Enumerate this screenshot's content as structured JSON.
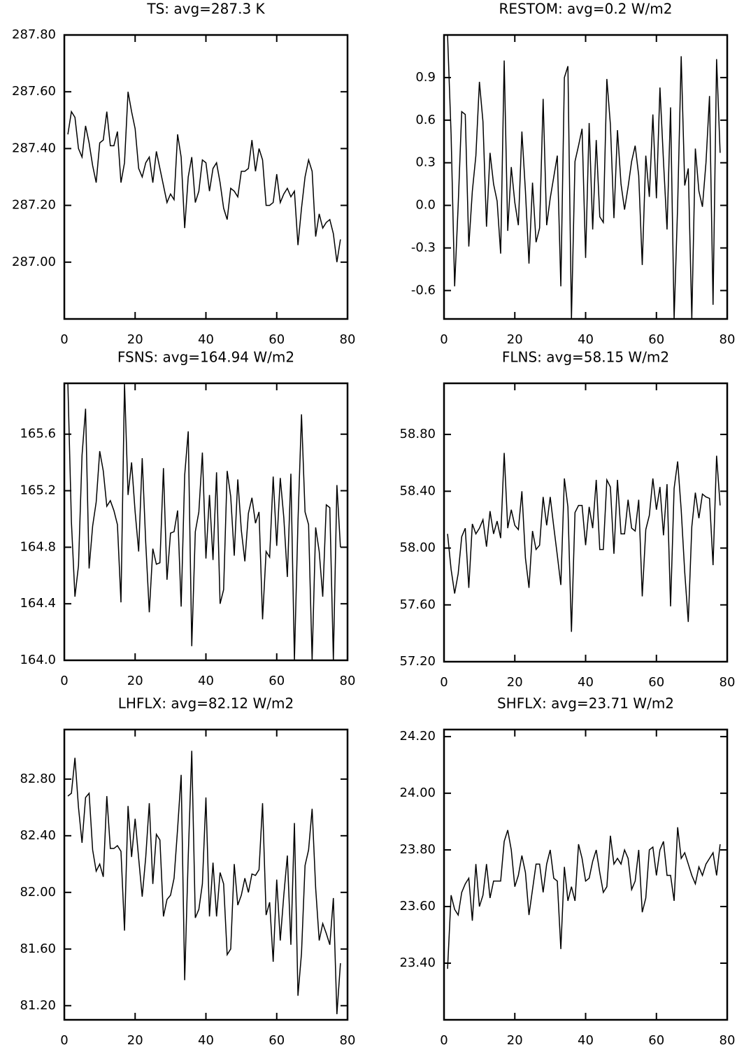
{
  "chart_data": [
    {
      "type": "line",
      "title": "TS: avg=287.3 K",
      "color": "#000000",
      "x": [
        1,
        2,
        3,
        4,
        5,
        6,
        7,
        8,
        9,
        10,
        11,
        12,
        13,
        14,
        15,
        16,
        17,
        18,
        19,
        20,
        21,
        22,
        23,
        24,
        25,
        26,
        27,
        28,
        29,
        30,
        31,
        32,
        33,
        34,
        35,
        36,
        37,
        38,
        39,
        40,
        41,
        42,
        43,
        44,
        45,
        46,
        47,
        48,
        49,
        50,
        51,
        52,
        53,
        54,
        55,
        56,
        57,
        58,
        59,
        60,
        61,
        62,
        63,
        64,
        65,
        66,
        67,
        68,
        69,
        70,
        71,
        72,
        73,
        74,
        75,
        76,
        77,
        78
      ],
      "values": [
        287.45,
        287.53,
        287.51,
        287.4,
        287.37,
        287.48,
        287.42,
        287.34,
        287.28,
        287.42,
        287.43,
        287.53,
        287.41,
        287.41,
        287.46,
        287.28,
        287.35,
        287.6,
        287.53,
        287.47,
        287.33,
        287.3,
        287.35,
        287.37,
        287.28,
        287.39,
        287.33,
        287.27,
        287.21,
        287.24,
        287.22,
        287.45,
        287.37,
        287.12,
        287.3,
        287.37,
        287.21,
        287.25,
        287.36,
        287.35,
        287.25,
        287.33,
        287.35,
        287.28,
        287.19,
        287.15,
        287.26,
        287.25,
        287.23,
        287.32,
        287.32,
        287.33,
        287.43,
        287.32,
        287.4,
        287.36,
        287.2,
        287.2,
        287.21,
        287.31,
        287.21,
        287.24,
        287.26,
        287.23,
        287.25,
        287.06,
        287.19,
        287.3,
        287.36,
        287.32,
        287.09,
        287.17,
        287.12,
        287.14,
        287.15,
        287.1,
        287.0,
        287.08
      ],
      "xlim": [
        0,
        80
      ],
      "xticks": [
        0,
        20,
        40,
        60,
        80
      ],
      "ylim": [
        286.8,
        287.8
      ],
      "yticks": [
        {
          "value": 287.0,
          "label": "287.00"
        },
        {
          "value": 287.2,
          "label": "287.20"
        },
        {
          "value": 287.4,
          "label": "287.40"
        },
        {
          "value": 287.6,
          "label": "287.60"
        },
        {
          "value": 287.8,
          "label": "287.80"
        }
      ]
    },
    {
      "type": "line",
      "title": "RESTOM: avg=0.2 W/m2",
      "color": "#000000",
      "x": [
        1,
        2,
        3,
        4,
        5,
        6,
        7,
        8,
        9,
        10,
        11,
        12,
        13,
        14,
        15,
        16,
        17,
        18,
        19,
        20,
        21,
        22,
        23,
        24,
        25,
        26,
        27,
        28,
        29,
        30,
        31,
        32,
        33,
        34,
        35,
        36,
        37,
        38,
        39,
        40,
        41,
        42,
        43,
        44,
        45,
        46,
        47,
        48,
        49,
        50,
        51,
        52,
        53,
        54,
        55,
        56,
        57,
        58,
        59,
        60,
        61,
        62,
        63,
        64,
        65,
        66,
        67,
        68,
        69,
        70,
        71,
        72,
        73,
        74,
        75,
        76,
        77,
        78
      ],
      "values": [
        1.2,
        0.5,
        -0.57,
        0.0,
        0.66,
        0.64,
        -0.29,
        0.1,
        0.35,
        0.87,
        0.59,
        -0.15,
        0.37,
        0.15,
        0.03,
        -0.34,
        1.02,
        -0.18,
        0.27,
        0.02,
        -0.14,
        0.52,
        0.1,
        -0.41,
        0.16,
        -0.26,
        -0.16,
        0.75,
        -0.14,
        0.05,
        0.2,
        0.35,
        -0.57,
        0.9,
        0.98,
        -0.8,
        0.31,
        0.42,
        0.54,
        -0.37,
        0.58,
        -0.17,
        0.46,
        -0.08,
        -0.12,
        0.89,
        0.57,
        -0.09,
        0.53,
        0.15,
        -0.03,
        0.13,
        0.31,
        0.42,
        0.21,
        -0.42,
        0.35,
        0.06,
        0.64,
        0.05,
        0.83,
        0.31,
        -0.17,
        0.69,
        -0.8,
        0.0,
        1.05,
        0.14,
        0.26,
        -0.8,
        0.4,
        0.1,
        -0.01,
        0.3,
        0.77,
        -0.7,
        1.03,
        0.37
      ],
      "xlim": [
        0,
        80
      ],
      "xticks": [
        0,
        20,
        40,
        60,
        80
      ],
      "ylim": [
        -0.8,
        1.2
      ],
      "yticks": [
        -0.6,
        -0.3,
        {
          "value": 0,
          "label": "0.0"
        },
        0.3,
        0.6,
        0.9
      ]
    },
    {
      "type": "line",
      "title": "FSNS: avg=164.94 W/m2",
      "color": "#000000",
      "x": [
        1,
        2,
        3,
        4,
        5,
        6,
        7,
        8,
        9,
        10,
        11,
        12,
        13,
        14,
        15,
        16,
        17,
        18,
        19,
        20,
        21,
        22,
        23,
        24,
        25,
        26,
        27,
        28,
        29,
        30,
        31,
        32,
        33,
        34,
        35,
        36,
        37,
        38,
        39,
        40,
        41,
        42,
        43,
        44,
        45,
        46,
        47,
        48,
        49,
        50,
        51,
        52,
        53,
        54,
        55,
        56,
        57,
        58,
        59,
        60,
        61,
        62,
        63,
        64,
        65,
        66,
        67,
        68,
        69,
        70,
        71,
        72,
        73,
        74,
        75,
        76,
        77,
        78
      ],
      "values": [
        165.96,
        164.98,
        164.45,
        164.67,
        165.45,
        165.78,
        164.65,
        164.95,
        165.12,
        165.48,
        165.34,
        165.09,
        165.13,
        165.06,
        164.96,
        164.41,
        165.96,
        165.17,
        165.4,
        165.05,
        164.77,
        165.43,
        164.83,
        164.34,
        164.79,
        164.68,
        164.69,
        165.36,
        164.57,
        164.9,
        164.91,
        165.06,
        164.38,
        165.31,
        165.62,
        164.1,
        164.91,
        165.05,
        165.47,
        164.72,
        165.17,
        164.71,
        165.33,
        164.4,
        164.5,
        165.34,
        165.16,
        164.74,
        165.28,
        164.92,
        164.7,
        165.04,
        165.15,
        164.97,
        165.05,
        164.29,
        164.77,
        164.73,
        165.3,
        164.81,
        165.29,
        165.01,
        164.59,
        165.32,
        164.0,
        164.98,
        165.74,
        165.05,
        164.96,
        164.0,
        164.94,
        164.77,
        164.45,
        165.1,
        165.08,
        164.0,
        165.24,
        164.8
      ],
      "xlim": [
        0,
        80
      ],
      "xticks": [
        0,
        20,
        40,
        60,
        80
      ],
      "ylim": [
        164.0,
        165.96
      ],
      "yticks": [
        {
          "value": 164.0,
          "label": "164.0"
        },
        164.4,
        164.8,
        165.2,
        165.6
      ]
    },
    {
      "type": "line",
      "title": "FLNS: avg=58.15 W/m2",
      "color": "#000000",
      "x": [
        1,
        2,
        3,
        4,
        5,
        6,
        7,
        8,
        9,
        10,
        11,
        12,
        13,
        14,
        15,
        16,
        17,
        18,
        19,
        20,
        21,
        22,
        23,
        24,
        25,
        26,
        27,
        28,
        29,
        30,
        31,
        32,
        33,
        34,
        35,
        36,
        37,
        38,
        39,
        40,
        41,
        42,
        43,
        44,
        45,
        46,
        47,
        48,
        49,
        50,
        51,
        52,
        53,
        54,
        55,
        56,
        57,
        58,
        59,
        60,
        61,
        62,
        63,
        64,
        65,
        66,
        67,
        68,
        69,
        70,
        71,
        72,
        73,
        74,
        75,
        76,
        77,
        78
      ],
      "values": [
        58.1,
        57.85,
        57.68,
        57.82,
        58.08,
        58.14,
        57.72,
        58.17,
        58.1,
        58.14,
        58.2,
        58.01,
        58.26,
        58.1,
        58.19,
        58.07,
        58.67,
        58.14,
        58.27,
        58.16,
        58.13,
        58.4,
        57.93,
        57.72,
        58.12,
        57.99,
        58.02,
        58.36,
        58.16,
        58.36,
        58.15,
        57.95,
        57.74,
        58.49,
        58.29,
        57.41,
        58.25,
        58.3,
        58.3,
        58.02,
        58.29,
        58.14,
        58.48,
        57.99,
        57.99,
        58.48,
        58.43,
        57.96,
        58.48,
        58.1,
        58.1,
        58.34,
        58.14,
        58.12,
        58.34,
        57.66,
        58.13,
        58.23,
        58.49,
        58.27,
        58.43,
        58.09,
        58.45,
        57.59,
        58.42,
        58.61,
        58.27,
        57.83,
        57.48,
        58.15,
        58.39,
        58.21,
        58.38,
        58.36,
        58.35,
        57.88,
        58.65,
        58.3
      ],
      "xlim": [
        0,
        80
      ],
      "xticks": [
        0,
        20,
        40,
        60,
        80
      ],
      "ylim": [
        57.2,
        59.16
      ],
      "yticks": [
        {
          "value": 57.2,
          "label": "57.20"
        },
        {
          "value": 57.6,
          "label": "57.60"
        },
        {
          "value": 58.0,
          "label": "58.00"
        },
        {
          "value": 58.4,
          "label": "58.40"
        },
        {
          "value": 58.8,
          "label": "58.80"
        }
      ]
    },
    {
      "type": "line",
      "title": "LHFLX: avg=82.12 W/m2",
      "color": "#000000",
      "x": [
        1,
        2,
        3,
        4,
        5,
        6,
        7,
        8,
        9,
        10,
        11,
        12,
        13,
        14,
        15,
        16,
        17,
        18,
        19,
        20,
        21,
        22,
        23,
        24,
        25,
        26,
        27,
        28,
        29,
        30,
        31,
        32,
        33,
        34,
        35,
        36,
        37,
        38,
        39,
        40,
        41,
        42,
        43,
        44,
        45,
        46,
        47,
        48,
        49,
        50,
        51,
        52,
        53,
        54,
        55,
        56,
        57,
        58,
        59,
        60,
        61,
        62,
        63,
        64,
        65,
        66,
        67,
        68,
        69,
        70,
        71,
        72,
        73,
        74,
        75,
        76,
        77,
        78
      ],
      "values": [
        82.68,
        82.7,
        82.95,
        82.6,
        82.35,
        82.67,
        82.7,
        82.3,
        82.15,
        82.2,
        82.11,
        82.68,
        82.31,
        82.31,
        82.33,
        82.29,
        81.73,
        82.61,
        82.25,
        82.52,
        82.24,
        81.97,
        82.25,
        82.63,
        82.06,
        82.41,
        82.37,
        81.83,
        81.95,
        81.98,
        82.1,
        82.45,
        82.83,
        81.38,
        82.25,
        83.0,
        81.82,
        81.88,
        82.06,
        82.67,
        81.83,
        82.21,
        81.83,
        82.14,
        82.06,
        81.56,
        81.6,
        82.2,
        81.91,
        81.98,
        82.1,
        82.0,
        82.13,
        82.12,
        82.16,
        82.63,
        81.84,
        81.93,
        81.51,
        82.09,
        81.66,
        81.98,
        82.26,
        81.63,
        82.49,
        81.27,
        81.57,
        82.19,
        82.3,
        82.59,
        82.03,
        81.66,
        81.78,
        81.71,
        81.63,
        81.96,
        81.14,
        81.5
      ],
      "xlim": [
        0,
        80
      ],
      "xticks": [
        0,
        20,
        40,
        60,
        80
      ],
      "ylim": [
        81.1,
        83.15
      ],
      "yticks": [
        {
          "value": 81.2,
          "label": "81.20"
        },
        {
          "value": 81.6,
          "label": "81.60"
        },
        {
          "value": 82.0,
          "label": "82.00"
        },
        {
          "value": 82.4,
          "label": "82.40"
        },
        {
          "value": 82.8,
          "label": "82.80"
        }
      ]
    },
    {
      "type": "line",
      "title": "SHFLX: avg=23.71 W/m2",
      "color": "#000000",
      "x": [
        1,
        2,
        3,
        4,
        5,
        6,
        7,
        8,
        9,
        10,
        11,
        12,
        13,
        14,
        15,
        16,
        17,
        18,
        19,
        20,
        21,
        22,
        23,
        24,
        25,
        26,
        27,
        28,
        29,
        30,
        31,
        32,
        33,
        34,
        35,
        36,
        37,
        38,
        39,
        40,
        41,
        42,
        43,
        44,
        45,
        46,
        47,
        48,
        49,
        50,
        51,
        52,
        53,
        54,
        55,
        56,
        57,
        58,
        59,
        60,
        61,
        62,
        63,
        64,
        65,
        66,
        67,
        68,
        69,
        70,
        71,
        72,
        73,
        74,
        75,
        76,
        77,
        78
      ],
      "values": [
        23.38,
        23.64,
        23.59,
        23.57,
        23.65,
        23.68,
        23.7,
        23.55,
        23.75,
        23.6,
        23.64,
        23.75,
        23.63,
        23.69,
        23.69,
        23.69,
        23.83,
        23.87,
        23.8,
        23.67,
        23.71,
        23.78,
        23.72,
        23.57,
        23.66,
        23.75,
        23.75,
        23.65,
        23.75,
        23.8,
        23.7,
        23.69,
        23.45,
        23.74,
        23.62,
        23.67,
        23.62,
        23.82,
        23.77,
        23.69,
        23.7,
        23.76,
        23.8,
        23.72,
        23.65,
        23.67,
        23.85,
        23.75,
        23.77,
        23.75,
        23.8,
        23.77,
        23.66,
        23.69,
        23.8,
        23.58,
        23.63,
        23.8,
        23.81,
        23.71,
        23.8,
        23.83,
        23.71,
        23.71,
        23.62,
        23.88,
        23.77,
        23.79,
        23.75,
        23.71,
        23.68,
        23.74,
        23.71,
        23.75,
        23.77,
        23.79,
        23.71,
        23.82
      ],
      "xlim": [
        0,
        80
      ],
      "xticks": [
        0,
        20,
        40,
        60,
        80
      ],
      "ylim": [
        23.2,
        24.225
      ],
      "yticks": [
        {
          "value": 23.4,
          "label": "23.40"
        },
        {
          "value": 23.6,
          "label": "23.60"
        },
        {
          "value": 23.8,
          "label": "23.80"
        },
        {
          "value": 24.0,
          "label": "24.00"
        },
        {
          "value": 24.2,
          "label": "24.20"
        }
      ]
    }
  ]
}
